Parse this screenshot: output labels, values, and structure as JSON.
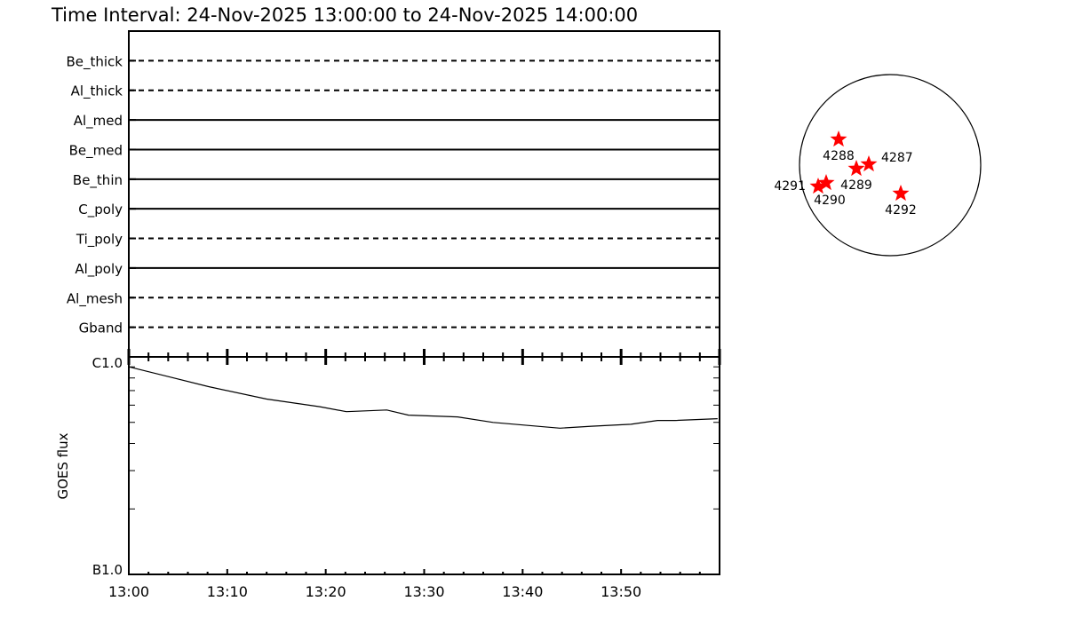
{
  "title": "Time Interval: 24-Nov-2025 13:00:00 to 24-Nov-2025 14:00:00",
  "chart_data": [
    {
      "type": "table",
      "description_kind": "filter coverage",
      "rows": [
        {
          "label": "Be_thick",
          "style": "dashed"
        },
        {
          "label": "Al_thick",
          "style": "dashed"
        },
        {
          "label": "Al_med",
          "style": "solid"
        },
        {
          "label": "Be_med",
          "style": "solid"
        },
        {
          "label": "Be_thin",
          "style": "solid"
        },
        {
          "label": "C_poly",
          "style": "solid"
        },
        {
          "label": "Ti_poly",
          "style": "dashed"
        },
        {
          "label": "Al_poly",
          "style": "solid"
        },
        {
          "label": "Al_mesh",
          "style": "dashed"
        },
        {
          "label": "Gband",
          "style": "dashed"
        }
      ]
    },
    {
      "type": "line",
      "ylabel": "GOES flux",
      "yscale": "log",
      "ylim": [
        1e-07,
        1e-06
      ],
      "ytick_labels": [
        {
          "value": 1e-06,
          "label": "C1.0"
        },
        {
          "value": 1e-07,
          "label": "B1.0"
        }
      ],
      "xlim_minutes": [
        0,
        60
      ],
      "xtick_labels": [
        "13:00",
        "13:10",
        "13:20",
        "13:30",
        "13:40",
        "13:50"
      ],
      "x_minutes": [
        0,
        4.1,
        8.1,
        14,
        19.4,
        22.1,
        26.2,
        28.4,
        33.4,
        37,
        43.8,
        47,
        51,
        53.7,
        55.5,
        59.8
      ],
      "y": [
        9e-07,
        8.1e-07,
        7.3e-07,
        6.4e-07,
        5.9e-07,
        5.6e-07,
        5.7e-07,
        5.4e-07,
        5.3e-07,
        5e-07,
        4.7e-07,
        4.8e-07,
        4.9e-07,
        5.1e-07,
        5.1e-07,
        5.2e-07
      ],
      "color": "#000000"
    },
    {
      "type": "scatter",
      "description_kind": "solar disk active regions",
      "marker": "star",
      "color": "#ff0000",
      "regions": [
        {
          "label": "4288"
        },
        {
          "label": "4287"
        },
        {
          "label": "4289"
        },
        {
          "label": "4290"
        },
        {
          "label": "4291"
        },
        {
          "label": "4292"
        }
      ]
    }
  ]
}
